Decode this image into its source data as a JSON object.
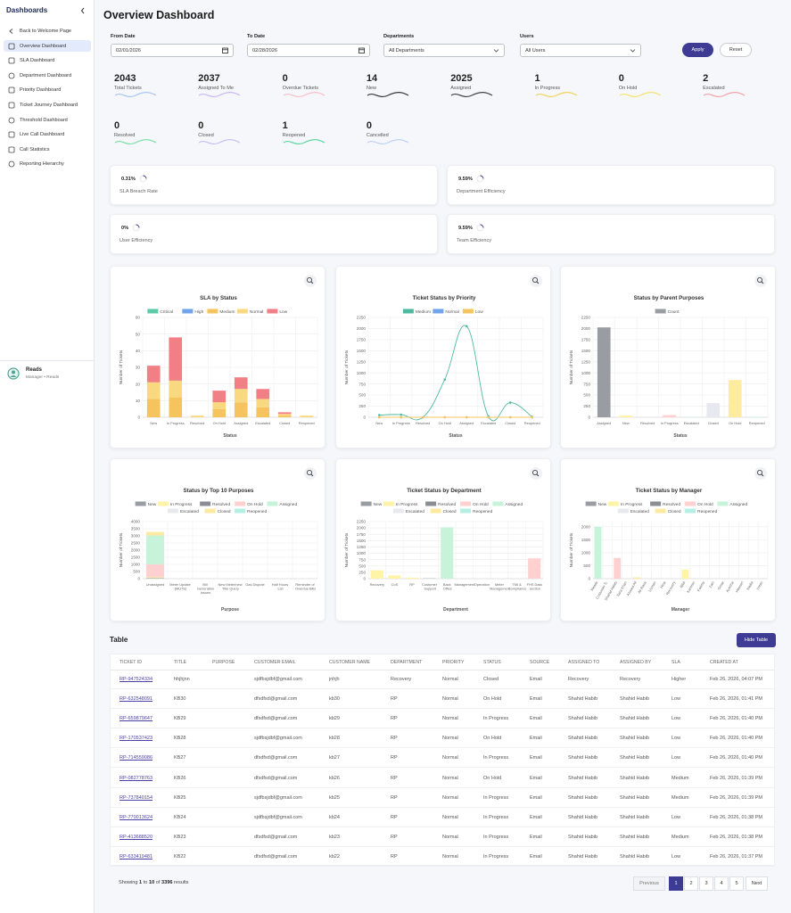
{
  "sidebar": {
    "title": "Dashboards",
    "items": [
      "Back to Welcome Page",
      "Overview Dashboard",
      "SLA Dashboard",
      "Department Dashboard",
      "Priority Dashboard",
      "Ticket Journey Dashboard",
      "Threshold Dashboard",
      "Live Call Dashboard",
      "Call Statistics",
      "Reporting Hierarchy"
    ],
    "user": {
      "name": "Reads",
      "role": "Manager • Reads"
    }
  },
  "header": {
    "title": "Overview Dashboard"
  },
  "filters": {
    "fields": [
      {
        "label": "From Date",
        "value": "02/01/2026"
      },
      {
        "label": "To Date",
        "value": "02/28/2026"
      },
      {
        "label": "Departments",
        "value": "All Departments"
      },
      {
        "label": "Users",
        "value": "All Users"
      }
    ],
    "apply": "Apply",
    "reset": "Reset"
  },
  "stats": [
    {
      "value": 2043,
      "label": "Total Tickets",
      "color": "#a9c6f2"
    },
    {
      "value": 2037,
      "label": "Assigned To Me",
      "color": "#c9b9f2"
    },
    {
      "value": 0,
      "label": "Overdue Tickets",
      "color": "#f6c1ca"
    },
    {
      "value": 14,
      "label": "New",
      "color": "#3a3a3a"
    },
    {
      "value": 2025,
      "label": "Assigned",
      "color": "#444444"
    },
    {
      "value": 1,
      "label": "In Progress",
      "color": "#f1d35e"
    },
    {
      "value": 0,
      "label": "On Hold",
      "color": "#f3e46f"
    },
    {
      "value": 2,
      "label": "Escalated",
      "color": "#f2a3ab"
    },
    {
      "value": 0,
      "label": "Resolved",
      "color": "#7fe0a9"
    },
    {
      "value": 0,
      "label": "Closed",
      "color": "#c8c0f2"
    },
    {
      "value": 1,
      "label": "Reopened",
      "color": "#5fd8a0"
    },
    {
      "value": 0,
      "label": "Cancelled",
      "color": "#c0d2f2"
    }
  ],
  "kpis": [
    {
      "value": "0.31%",
      "label": "SLA Breach Rate"
    },
    {
      "value": "9.59%",
      "label": "Department Efficiency"
    },
    {
      "value": "0%",
      "label": "User Efficiency"
    },
    {
      "value": "9.59%",
      "label": "Team Efficiency"
    }
  ],
  "chart_data": [
    {
      "type": "bar",
      "stacked": true,
      "title": "SLA by Status",
      "categories": [
        "New",
        "In Progress",
        "Resolved",
        "On Hold",
        "Assigned",
        "Escalated",
        "Closed",
        "Reopened"
      ],
      "series": [
        {
          "name": "Critical",
          "color": "#5cc9a7",
          "values": [
            0,
            0,
            0,
            0,
            0,
            0,
            0,
            0
          ]
        },
        {
          "name": "High",
          "color": "#6fa3ea",
          "values": [
            0,
            0,
            0,
            0,
            0,
            0,
            0,
            0
          ]
        },
        {
          "name": "Medium",
          "color": "#f6c45f",
          "values": [
            11,
            12,
            0,
            5,
            9,
            6,
            1,
            0
          ]
        },
        {
          "name": "Normal",
          "color": "#f9d97f",
          "values": [
            10,
            10,
            1,
            4,
            8,
            5,
            1,
            1
          ]
        },
        {
          "name": "Low",
          "color": "#f27f85",
          "values": [
            10,
            26,
            0,
            7,
            7,
            6,
            1,
            0
          ]
        }
      ],
      "ylim": [
        0,
        60
      ],
      "yticks": [
        0,
        10,
        20,
        30,
        40,
        50,
        60
      ],
      "ylabel": "Number of Tickets",
      "xlabel": "Status",
      "grid": true
    },
    {
      "type": "line",
      "title": "Ticket Status by Priority",
      "categories": [
        "New",
        "In Progress",
        "Resolved",
        "On Hold",
        "Assigned",
        "Escalated",
        "Closed",
        "Reopened"
      ],
      "series": [
        {
          "name": "Medium",
          "color": "#4fb9a0",
          "values": [
            50,
            60,
            0,
            850,
            2050,
            20,
            330,
            10
          ]
        },
        {
          "name": "Normal",
          "color": "#6fa3ea",
          "values": [
            0,
            0,
            0,
            0,
            0,
            0,
            0,
            0
          ]
        },
        {
          "name": "Low",
          "color": "#f6c45f",
          "values": [
            0,
            0,
            0,
            0,
            0,
            0,
            0,
            0
          ]
        }
      ],
      "ylim": [
        0,
        2250
      ],
      "yticks": [
        0,
        250,
        500,
        750,
        1000,
        1250,
        1500,
        1750,
        2000,
        2250
      ],
      "ylabel": "Number of Tickets",
      "xlabel": "Status",
      "grid": true
    },
    {
      "type": "bar",
      "title": "Status by Parent Purposes",
      "categories": [
        "Assigned",
        "New",
        "Resolved",
        "In Progress",
        "Escalated",
        "Closed",
        "On Hold",
        "Reopened"
      ],
      "series": [
        {
          "name": "Count",
          "color": "#9a9ca3",
          "colors": [
            "#9a9ca3",
            "#fff3a8",
            "#8a8d94",
            "#ffd0d0",
            "#c8f3db",
            "#e8e9ee",
            "#fdeca0",
            "#b5efe3"
          ],
          "values": [
            2025,
            40,
            0,
            50,
            10,
            320,
            840,
            10
          ]
        }
      ],
      "ylim": [
        0,
        2250
      ],
      "yticks": [
        0,
        250,
        500,
        750,
        1000,
        1250,
        1500,
        1750,
        2000,
        2250
      ],
      "ylabel": "Number of Tickets",
      "xlabel": "Status",
      "grid": true
    },
    {
      "type": "bar",
      "stacked": true,
      "title": "Status by Top 10 Purposes",
      "categories": [
        "Unassigned",
        "Meter Update (MUTE)",
        "Bill Generation Issues",
        "New Meter/new Title Query",
        "Gas Dispute",
        "Half Hours List",
        "Reminder of Overdue Bills"
      ],
      "series": [
        {
          "name": "New",
          "color": "#9a9ca3",
          "values": [
            40,
            0,
            0,
            0,
            0,
            0,
            0
          ]
        },
        {
          "name": "In Progress",
          "color": "#fff3a8",
          "values": [
            60,
            0,
            0,
            0,
            0,
            0,
            0
          ]
        },
        {
          "name": "Resolved",
          "color": "#8a8d94",
          "values": [
            0,
            0,
            0,
            0,
            0,
            0,
            0
          ]
        },
        {
          "name": "On Hold",
          "color": "#ffd0d0",
          "values": [
            900,
            0,
            0,
            0,
            0,
            0,
            0
          ]
        },
        {
          "name": "Assigned",
          "color": "#c8f3db",
          "values": [
            2025,
            0,
            0,
            0,
            0,
            0,
            0
          ]
        },
        {
          "name": "Escalated",
          "color": "#e8e9ee",
          "values": [
            0,
            0,
            0,
            0,
            0,
            0,
            0
          ]
        },
        {
          "name": "Closed",
          "color": "#fde9a0",
          "values": [
            250,
            0,
            0,
            0,
            0,
            0,
            0
          ]
        },
        {
          "name": "Reopened",
          "color": "#b5efe3",
          "values": [
            0,
            0,
            0,
            0,
            0,
            0,
            0
          ]
        }
      ],
      "ylim": [
        0,
        4000
      ],
      "yticks": [
        0,
        500,
        1000,
        1500,
        2000,
        2500,
        3000,
        3500,
        4000
      ],
      "ylabel": "Number of Tickets",
      "xlabel": "Purpose",
      "grid": true
    },
    {
      "type": "bar",
      "stacked": true,
      "title": "Ticket Status by Department",
      "categories": [
        "Recovery",
        "CoS",
        "RP",
        "Customer Support",
        "Back Office",
        "Management",
        "Operation",
        "Meter Management",
        "TMI & Compliance",
        "FHS Data section"
      ],
      "series": [
        {
          "name": "New",
          "color": "#9a9ca3",
          "values": [
            0,
            0,
            0,
            10,
            0,
            0,
            0,
            0,
            0,
            0
          ]
        },
        {
          "name": "In Progress",
          "color": "#fff3a8",
          "values": [
            330,
            130,
            40,
            0,
            0,
            0,
            0,
            0,
            0,
            0
          ]
        },
        {
          "name": "Resolved",
          "color": "#8a8d94",
          "values": [
            0,
            0,
            0,
            0,
            0,
            0,
            0,
            0,
            0,
            0
          ]
        },
        {
          "name": "On Hold",
          "color": "#ffd0d0",
          "values": [
            0,
            0,
            0,
            0,
            0,
            0,
            0,
            0,
            0,
            800
          ]
        },
        {
          "name": "Assigned",
          "color": "#c8f3db",
          "values": [
            0,
            0,
            0,
            0,
            2025,
            0,
            0,
            0,
            0,
            0
          ]
        },
        {
          "name": "Escalated",
          "color": "#e8e9ee",
          "values": [
            0,
            0,
            0,
            0,
            0,
            0,
            0,
            0,
            0,
            0
          ]
        },
        {
          "name": "Closed",
          "color": "#fde9a0",
          "values": [
            0,
            0,
            0,
            0,
            0,
            0,
            0,
            0,
            0,
            0
          ]
        },
        {
          "name": "Reopened",
          "color": "#b5efe3",
          "values": [
            0,
            0,
            0,
            0,
            0,
            0,
            0,
            0,
            0,
            0
          ]
        }
      ],
      "ylim": [
        0,
        2250
      ],
      "yticks": [
        0,
        250,
        500,
        750,
        1000,
        1250,
        1500,
        1750,
        2000,
        2250
      ],
      "ylabel": "Number of Tickets",
      "xlabel": "Department",
      "grid": true
    },
    {
      "type": "bar",
      "stacked": true,
      "title": "Ticket Status by Manager",
      "categories": [
        "Reads",
        "Customer S.",
        "Shahid Habib",
        "Sara Khan",
        "Ahmed Ali",
        "Ali Raza",
        "Usman",
        "Hina",
        "Recovery",
        "Bilal",
        "Kamran",
        "Fatima",
        "Zain",
        "Omar",
        "Ayesha",
        "Hassan",
        "Nadia",
        "Imran"
      ],
      "series": [
        {
          "name": "New",
          "color": "#9a9ca3",
          "values": [
            0,
            0,
            0,
            0,
            0,
            0,
            0,
            0,
            0,
            0,
            0,
            0,
            0,
            0,
            0,
            0,
            0,
            0
          ]
        },
        {
          "name": "In Progress",
          "color": "#fff3a8",
          "values": [
            0,
            0,
            0,
            0,
            0,
            0,
            0,
            0,
            0,
            350,
            0,
            0,
            0,
            0,
            0,
            0,
            0,
            0
          ]
        },
        {
          "name": "Resolved",
          "color": "#8a8d94",
          "values": [
            0,
            0,
            0,
            0,
            0,
            0,
            0,
            0,
            0,
            0,
            0,
            0,
            0,
            0,
            0,
            0,
            0,
            0
          ]
        },
        {
          "name": "On Hold",
          "color": "#ffd0d0",
          "values": [
            0,
            0,
            800,
            0,
            0,
            0,
            0,
            0,
            0,
            0,
            0,
            0,
            0,
            0,
            0,
            0,
            0,
            0
          ]
        },
        {
          "name": "Assigned",
          "color": "#c8f3db",
          "values": [
            2000,
            0,
            0,
            0,
            0,
            0,
            0,
            0,
            0,
            0,
            0,
            0,
            0,
            0,
            0,
            0,
            0,
            0
          ]
        },
        {
          "name": "Escalated",
          "color": "#e8e9ee",
          "values": [
            0,
            0,
            0,
            0,
            0,
            0,
            0,
            0,
            0,
            0,
            0,
            0,
            0,
            0,
            0,
            0,
            0,
            0
          ]
        },
        {
          "name": "Closed",
          "color": "#fde9a0",
          "values": [
            0,
            0,
            0,
            0,
            50,
            0,
            0,
            0,
            0,
            0,
            0,
            0,
            0,
            0,
            0,
            0,
            0,
            0
          ]
        },
        {
          "name": "Reopened",
          "color": "#b5efe3",
          "values": [
            0,
            0,
            0,
            0,
            0,
            0,
            0,
            0,
            0,
            0,
            0,
            0,
            0,
            0,
            0,
            0,
            0,
            0
          ]
        }
      ],
      "ylim": [
        0,
        2200
      ],
      "yticks": [
        0,
        500,
        1000,
        1500,
        2000
      ],
      "ylabel": "Number of Tickets",
      "xlabel": "Manager",
      "grid": true
    }
  ],
  "table": {
    "title": "Table",
    "toggle": "Hide Table",
    "columns": [
      "TICKET ID",
      "TITLE",
      "PURPOSE",
      "CUSTOMER EMAIL",
      "CUSTOMER NAME",
      "DEPARTMENT",
      "PRIORITY",
      "STATUS",
      "SOURCE",
      "ASSIGNED TO",
      "ASSIGNED BY",
      "SLA",
      "CREATED AT"
    ],
    "rows": [
      [
        "RP-947524334",
        "hhjhjnn",
        "",
        "sjdfbsjdbf@gmail.com",
        "jnhjh",
        "Recovery",
        "Normal",
        "Closed",
        "Email",
        "Recovery",
        "Recovery",
        "Higher",
        "Feb 26, 2026, 04:07 PM"
      ],
      [
        "RP-632548091",
        "KB30",
        "",
        "dfsdfsd@gmail.com",
        "kb30",
        "RP",
        "Normal",
        "On Hold",
        "Email",
        "Shahid Habib",
        "Shahid Habib",
        "Low",
        "Feb 26, 2026, 01:41 PM"
      ],
      [
        "RP-659879647",
        "KB29",
        "",
        "dfsdfsd@gmail.com",
        "kb29",
        "RP",
        "Normal",
        "In Progress",
        "Email",
        "Shahid Habib",
        "Shahid Habib",
        "Low",
        "Feb 26, 2026, 01:40 PM"
      ],
      [
        "RP-170537423",
        "KB28",
        "",
        "sjdfbsjdbf@gmail.com",
        "kb28",
        "RP",
        "Normal",
        "On Hold",
        "Email",
        "Shahid Habib",
        "Shahid Habib",
        "Low",
        "Feb 26, 2026, 01:40 PM"
      ],
      [
        "RP-714559086",
        "KB27",
        "",
        "dfsdfsd@gmail.com",
        "kb27",
        "RP",
        "Normal",
        "In Progress",
        "Email",
        "Shahid Habib",
        "Shahid Habib",
        "Low",
        "Feb 26, 2026, 01:40 PM"
      ],
      [
        "RP-082778763",
        "KB26",
        "",
        "dfsdfsd@gmail.com",
        "kb26",
        "RP",
        "Normal",
        "On Hold",
        "Email",
        "Shahid Habib",
        "Shahid Habib",
        "Medium",
        "Feb 26, 2026, 01:39 PM"
      ],
      [
        "RP-737840154",
        "KB25",
        "",
        "sjdfbsjdbf@gmail.com",
        "kb25",
        "RP",
        "Normal",
        "In Progress",
        "Email",
        "Shahid Habib",
        "Shahid Habib",
        "Medium",
        "Feb 26, 2026, 01:39 PM"
      ],
      [
        "RP-770013624",
        "KB24",
        "",
        "sjdfbsjdbf@gmail.com",
        "kb24",
        "RP",
        "Normal",
        "In Progress",
        "Email",
        "Shahid Habib",
        "Shahid Habib",
        "Low",
        "Feb 26, 2026, 01:38 PM"
      ],
      [
        "RP-413688520",
        "KB23",
        "",
        "dfsdfsd@gmail.com",
        "kb23",
        "RP",
        "Normal",
        "In Progress",
        "Email",
        "Shahid Habib",
        "Shahid Habib",
        "Medium",
        "Feb 26, 2026, 01:38 PM"
      ],
      [
        "RP-633419481",
        "KB22",
        "",
        "dfsdfsd@gmail.com",
        "kb22",
        "RP",
        "Normal",
        "In Progress",
        "Email",
        "Shahid Habib",
        "Shahid Habib",
        "Low",
        "Feb 26, 2026, 01:37 PM"
      ]
    ],
    "summary": [
      "Showing",
      "1",
      "to",
      "10",
      "of",
      "3396",
      "results"
    ],
    "pagination": {
      "previous": "Previous",
      "pages": [
        "1",
        "2",
        "3",
        "4",
        "5"
      ],
      "current": "1",
      "next": "Next"
    }
  }
}
